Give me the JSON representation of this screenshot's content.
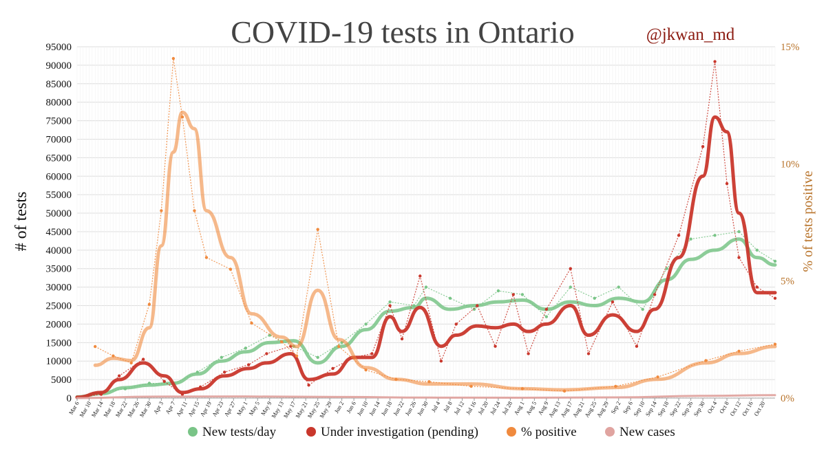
{
  "chart_data": {
    "type": "line",
    "title": "COVID-19 tests in Ontario",
    "author": "@jkwan_md",
    "ylabel": "# of tests",
    "y2label": "% of tests positive",
    "ylim": [
      0,
      95000
    ],
    "y2lim": [
      0,
      15
    ],
    "y_ticks": [
      "0",
      "5000",
      "10000",
      "15000",
      "20000",
      "25000",
      "30000",
      "35000",
      "40000",
      "45000",
      "50000",
      "55000",
      "60000",
      "65000",
      "70000",
      "75000",
      "80000",
      "85000",
      "90000",
      "95000"
    ],
    "y2_ticks": [
      "0%",
      "5%",
      "10%",
      "15%"
    ],
    "x_start": "2020-03-06",
    "x_end": "2020-10-24",
    "x_ticks": [
      "Mar 6",
      "Mar 10",
      "Mar 14",
      "Mar 18",
      "Mar 22",
      "Mar 26",
      "Mar 30",
      "Apr 3",
      "Apr 7",
      "Apr 11",
      "Apr 15",
      "Apr 19",
      "Apr 23",
      "Apr 27",
      "May 1",
      "May 5",
      "May 9",
      "May 13",
      "May 17",
      "May 21",
      "May 25",
      "May 29",
      "Jun 2",
      "Jun 6",
      "Jun 10",
      "Jun 14",
      "Jun 18",
      "Jun 22",
      "Jun 26",
      "Jun 30",
      "Jul 4",
      "Jul 8",
      "Jul 12",
      "Jul 16",
      "Jul 20",
      "Jul 24",
      "Jul 28",
      "Aug 1",
      "Aug 5",
      "Aug 9",
      "Aug 13",
      "Aug 17",
      "Aug 21",
      "Aug 25",
      "Aug 29",
      "Sep 2",
      "Sep 6",
      "Sep 10",
      "Sep 14",
      "Sep 18",
      "Sep 22",
      "Sep 26",
      "Sep 30",
      "Oct 4",
      "Oct 8",
      "Oct 12",
      "Oct 16",
      "Oct 20"
    ],
    "grid": true,
    "legend_position": "bottom",
    "series": [
      {
        "name": "New tests/day",
        "axis": "left",
        "color": "#79c487",
        "x": [
          "2020-03-06",
          "2020-03-14",
          "2020-03-22",
          "2020-03-30",
          "2020-04-07",
          "2020-04-15",
          "2020-04-23",
          "2020-05-01",
          "2020-05-09",
          "2020-05-17",
          "2020-05-25",
          "2020-06-02",
          "2020-06-10",
          "2020-06-18",
          "2020-06-26",
          "2020-06-30",
          "2020-07-08",
          "2020-07-16",
          "2020-07-24",
          "2020-08-01",
          "2020-08-09",
          "2020-08-17",
          "2020-08-25",
          "2020-09-02",
          "2020-09-10",
          "2020-09-18",
          "2020-09-26",
          "2020-10-04",
          "2020-10-12",
          "2020-10-18",
          "2020-10-24"
        ],
        "smoothed": [
          300,
          1200,
          2800,
          3500,
          4000,
          6500,
          10000,
          12500,
          15000,
          15500,
          9500,
          14000,
          18500,
          23500,
          24500,
          27000,
          24000,
          25000,
          26000,
          26500,
          24000,
          26000,
          25000,
          27000,
          26000,
          32000,
          37500,
          40000,
          43000,
          38000,
          36000
        ],
        "daily": [
          200,
          1500,
          2500,
          4000,
          3800,
          7000,
          11000,
          13500,
          17000,
          14000,
          11000,
          15000,
          20000,
          26000,
          25000,
          30000,
          27000,
          24000,
          29000,
          28000,
          22000,
          30000,
          27000,
          30000,
          24000,
          35000,
          43000,
          44000,
          45000,
          40000,
          37000
        ]
      },
      {
        "name": "Under investigation (pending)",
        "axis": "left",
        "color": "#c9372c",
        "x": [
          "2020-03-06",
          "2020-03-14",
          "2020-03-20",
          "2020-03-28",
          "2020-04-04",
          "2020-04-10",
          "2020-04-16",
          "2020-04-24",
          "2020-05-02",
          "2020-05-08",
          "2020-05-16",
          "2020-05-22",
          "2020-05-30",
          "2020-06-06",
          "2020-06-12",
          "2020-06-18",
          "2020-06-22",
          "2020-06-28",
          "2020-07-05",
          "2020-07-10",
          "2020-07-17",
          "2020-07-23",
          "2020-07-29",
          "2020-08-03",
          "2020-08-09",
          "2020-08-17",
          "2020-08-23",
          "2020-08-31",
          "2020-09-08",
          "2020-09-14",
          "2020-09-22",
          "2020-09-30",
          "2020-10-04",
          "2020-10-08",
          "2020-10-12",
          "2020-10-18",
          "2020-10-24"
        ],
        "smoothed": [
          200,
          1500,
          5000,
          9500,
          6000,
          1500,
          2500,
          6000,
          8000,
          9500,
          12000,
          5000,
          6500,
          11000,
          11000,
          22000,
          18000,
          24500,
          14000,
          17000,
          19500,
          19000,
          20000,
          18000,
          20000,
          25000,
          17000,
          22500,
          18000,
          24000,
          38000,
          60000,
          76000,
          72000,
          50000,
          28500,
          28500
        ],
        "daily": [
          100,
          1000,
          6000,
          10500,
          4500,
          1000,
          3000,
          7000,
          9000,
          12000,
          14000,
          3500,
          8000,
          11000,
          12000,
          25000,
          16000,
          33000,
          10000,
          20000,
          25000,
          14000,
          28000,
          12000,
          24000,
          35000,
          12000,
          26000,
          14000,
          28000,
          44000,
          68000,
          91000,
          58000,
          38000,
          30000,
          27000
        ]
      },
      {
        "name": "% positive",
        "axis": "right",
        "color": "#f08a3e",
        "x": [
          "2020-03-12",
          "2020-03-18",
          "2020-03-24",
          "2020-03-30",
          "2020-04-03",
          "2020-04-07",
          "2020-04-10",
          "2020-04-14",
          "2020-04-18",
          "2020-04-26",
          "2020-05-03",
          "2020-05-13",
          "2020-05-18",
          "2020-05-25",
          "2020-06-01",
          "2020-06-10",
          "2020-06-20",
          "2020-07-01",
          "2020-07-15",
          "2020-08-01",
          "2020-08-15",
          "2020-09-01",
          "2020-09-15",
          "2020-10-01",
          "2020-10-12",
          "2020-10-24"
        ],
        "smoothed": [
          1.4,
          1.7,
          1.6,
          3.0,
          6.5,
          10.5,
          12.2,
          11.5,
          8.0,
          6.0,
          3.6,
          2.6,
          2.2,
          4.6,
          2.5,
          1.3,
          0.8,
          0.6,
          0.6,
          0.4,
          0.35,
          0.45,
          0.8,
          1.5,
          1.9,
          2.2
        ],
        "daily": [
          2.2,
          1.8,
          1.5,
          4.0,
          8.0,
          14.5,
          12.0,
          8.0,
          6.0,
          5.5,
          3.2,
          2.4,
          1.8,
          7.2,
          2.2,
          1.2,
          0.8,
          0.7,
          0.5,
          0.4,
          0.3,
          0.5,
          0.9,
          1.6,
          2.0,
          2.3
        ]
      },
      {
        "name": "New cases",
        "axis": "left",
        "color": "#e0a4a0",
        "x": [
          "2020-03-06",
          "2020-04-01",
          "2020-05-01",
          "2020-06-01",
          "2020-07-01",
          "2020-08-01",
          "2020-09-01",
          "2020-10-01",
          "2020-10-24"
        ],
        "smoothed": [
          10,
          400,
          430,
          300,
          130,
          100,
          180,
          600,
          800
        ],
        "daily": []
      }
    ]
  },
  "legend": [
    {
      "label": "New tests/day",
      "color": "#79c487"
    },
    {
      "label": "Under investigation (pending)",
      "color": "#c9372c"
    },
    {
      "label": "% positive",
      "color": "#f08a3e"
    },
    {
      "label": "New cases",
      "color": "#e0a4a0"
    }
  ]
}
